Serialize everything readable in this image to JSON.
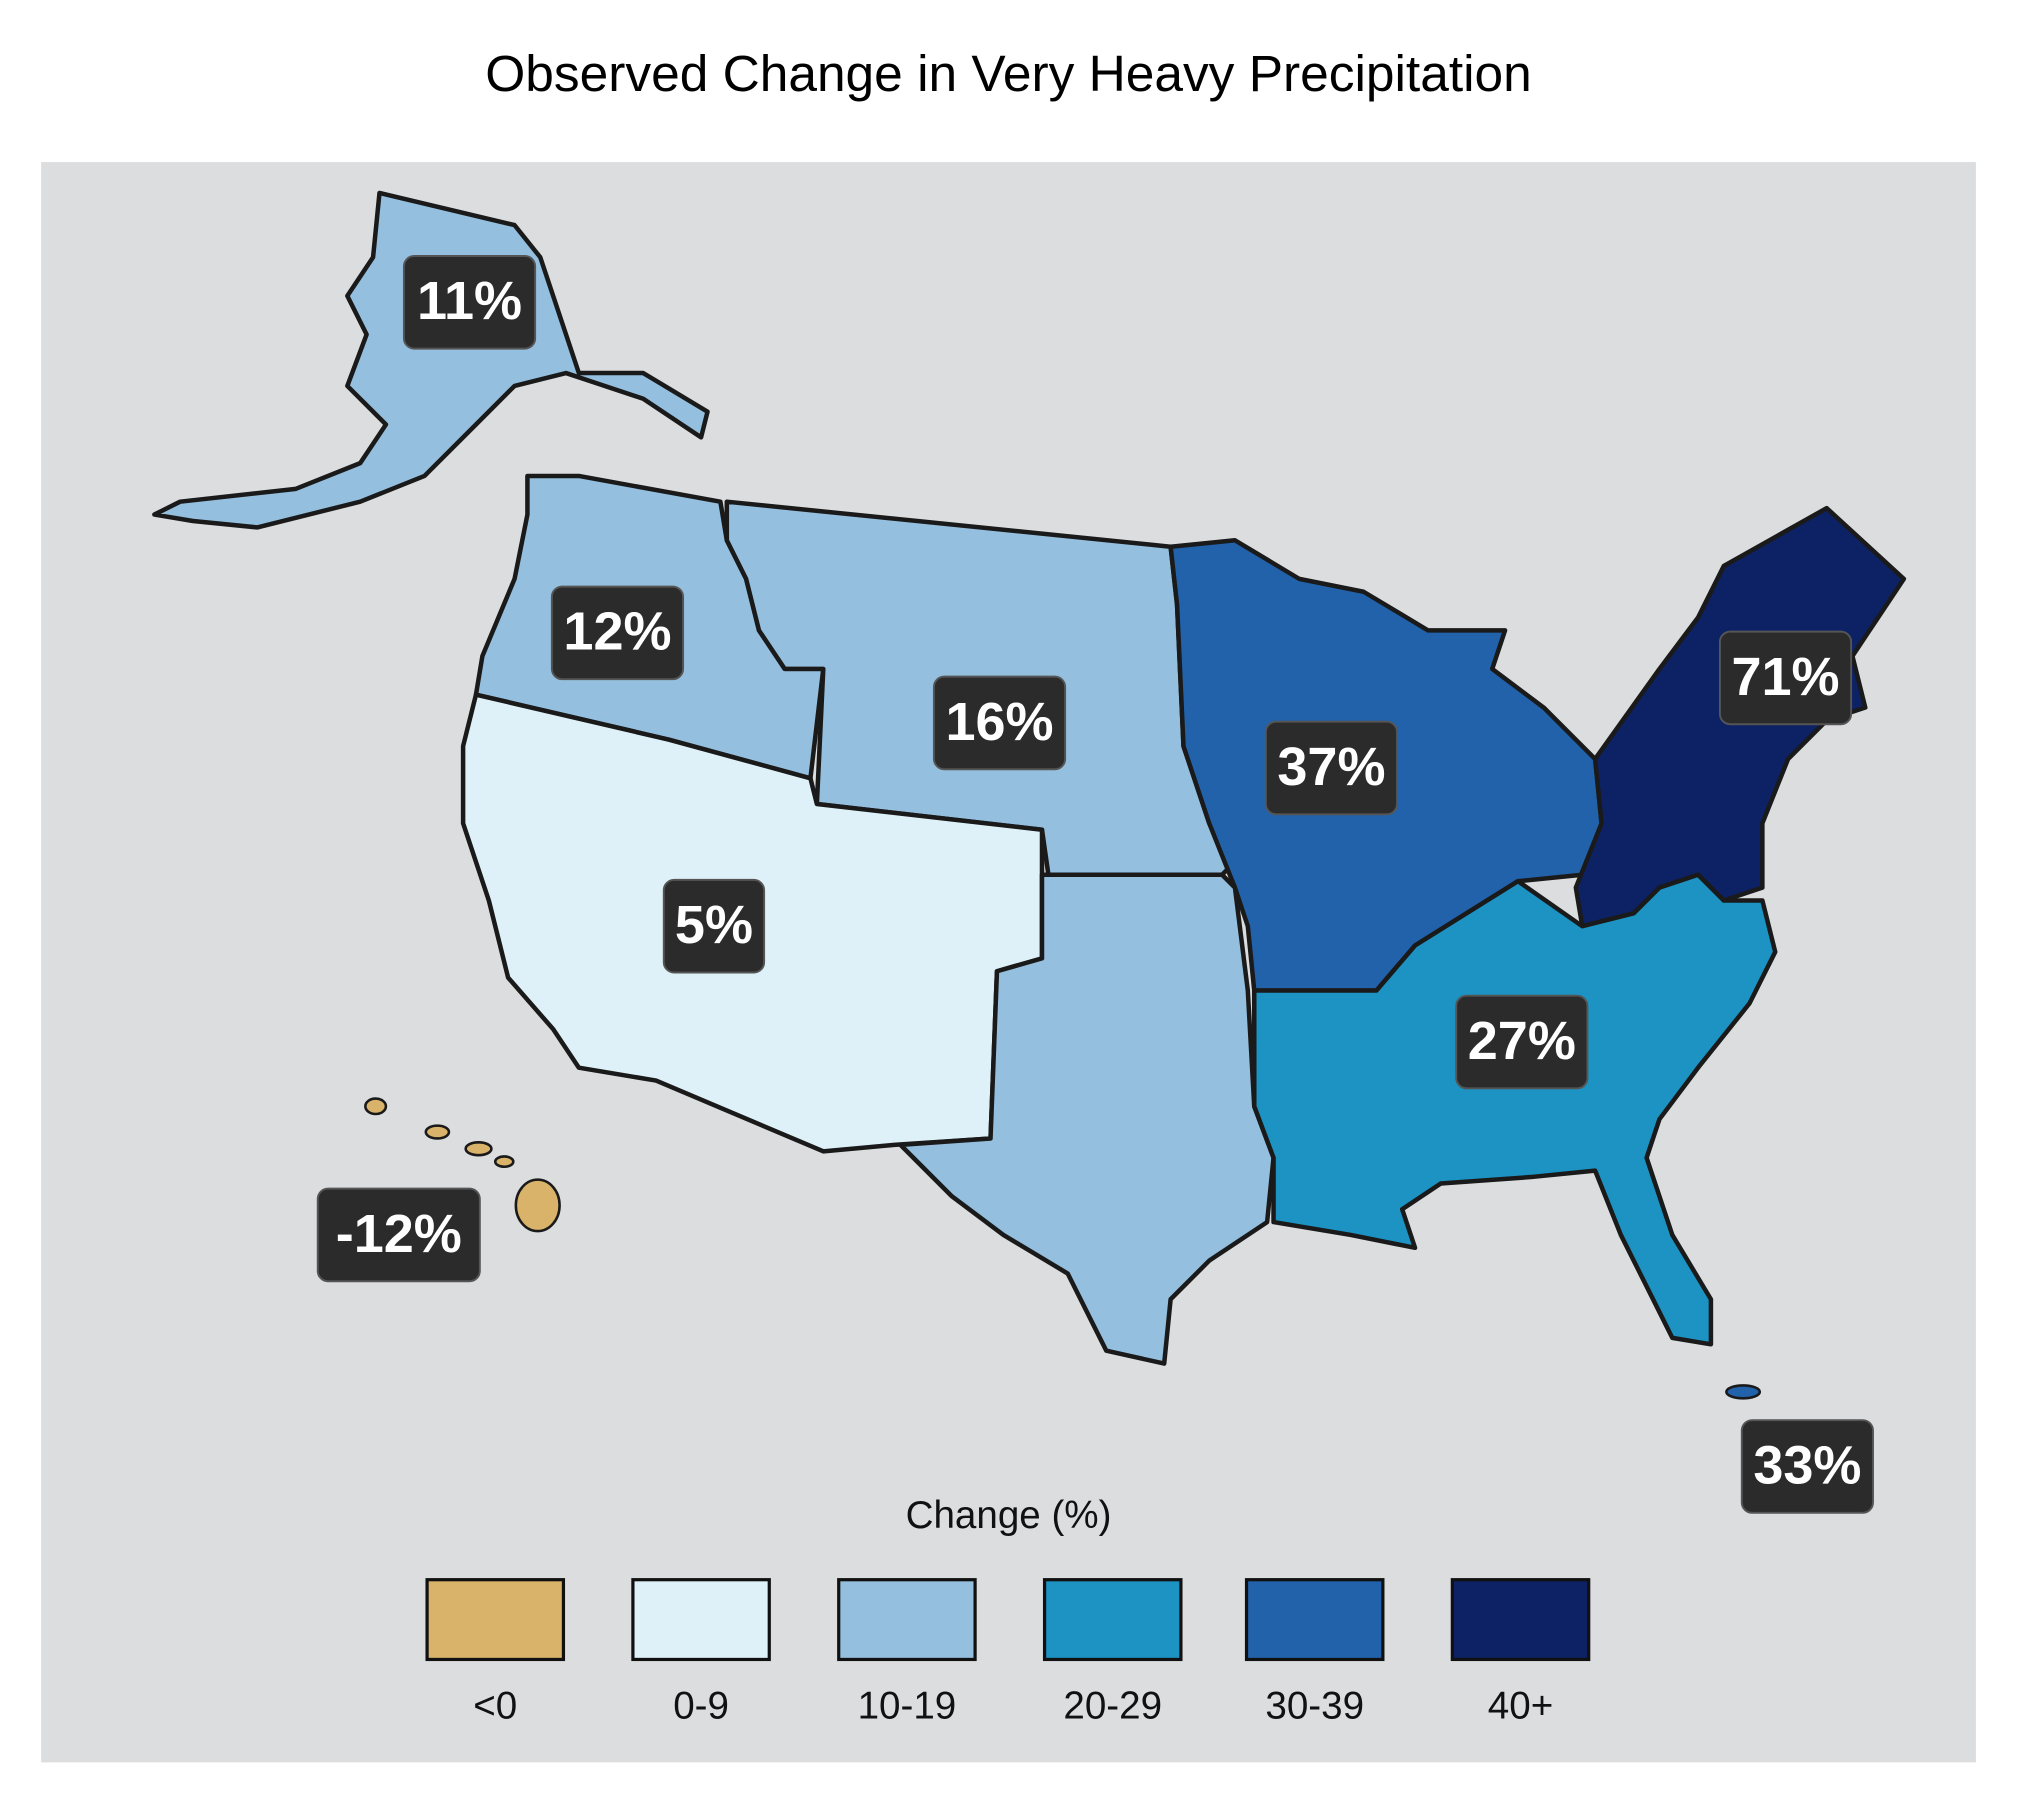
{
  "title": "Observed Change in Very Heavy Precipitation",
  "region_labels": [
    "11%",
    "12%",
    "16%",
    "5%",
    "37%",
    "71%",
    "27%",
    "-12%",
    "33%"
  ],
  "legend": {
    "title": "Change (%)",
    "items": [
      "<0",
      "0-9",
      "10-19",
      "20-29",
      "30-39",
      "40+"
    ]
  }
}
